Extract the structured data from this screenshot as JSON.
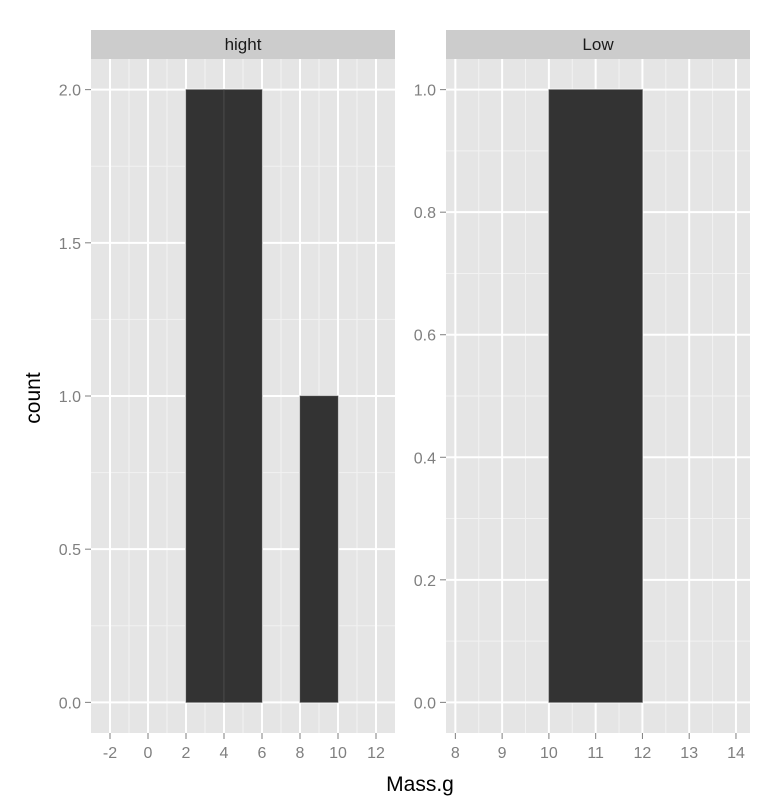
{
  "chart_data": {
    "type": "bar",
    "xlabel": "Mass.g",
    "ylabel": "count",
    "colors": {
      "panel_bg": "#e5e5e5",
      "strip_bg": "#cccccc",
      "grid_major": "#ffffff",
      "grid_minor": "#f2f2f2",
      "bar_fill": "#333333",
      "tick": "#7f7f7f"
    },
    "panels": [
      {
        "strip": "hight",
        "xlim": [
          -3,
          13
        ],
        "ylim": [
          -0.1,
          2.1
        ],
        "x_ticks": [
          -2,
          0,
          2,
          4,
          6,
          8,
          10,
          12
        ],
        "x_tick_labels": [
          "-2",
          "0",
          "2",
          "4",
          "6",
          "8",
          "10",
          "12"
        ],
        "y_ticks": [
          0,
          0.5,
          1,
          1.5,
          2
        ],
        "y_tick_labels": [
          "0.0",
          "0.5",
          "1.0",
          "1.5",
          "2.0"
        ],
        "bars": [
          {
            "xmin": 2,
            "xmax": 4,
            "count": 2
          },
          {
            "xmin": 4,
            "xmax": 6,
            "count": 2
          },
          {
            "xmin": 8,
            "xmax": 10,
            "count": 1
          }
        ]
      },
      {
        "strip": "Low",
        "xlim": [
          7.8,
          14.3
        ],
        "ylim": [
          -0.05,
          1.05
        ],
        "x_ticks": [
          8,
          9,
          10,
          11,
          12,
          13,
          14
        ],
        "x_tick_labels": [
          "8",
          "9",
          "10",
          "11",
          "12",
          "13",
          "14"
        ],
        "y_ticks": [
          0,
          0.2,
          0.4,
          0.6,
          0.8,
          1
        ],
        "y_tick_labels": [
          "0.0",
          "0.2",
          "0.4",
          "0.6",
          "0.8",
          "1.0"
        ],
        "bars": [
          {
            "xmin": 10,
            "xmax": 12,
            "count": 1
          }
        ]
      }
    ]
  }
}
